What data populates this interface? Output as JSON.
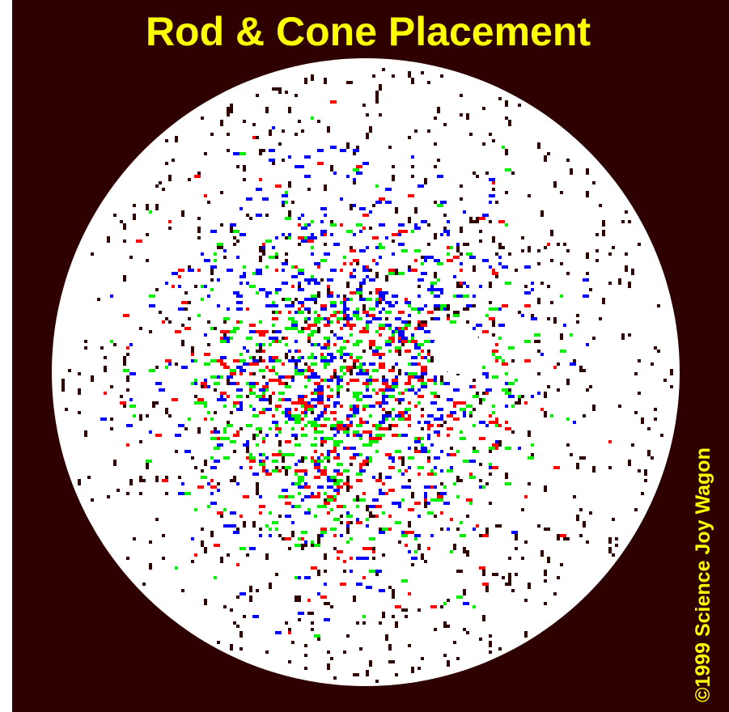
{
  "title": "Rod & Cone Placement",
  "credit": "©1999 Science Joy Wagon"
}
